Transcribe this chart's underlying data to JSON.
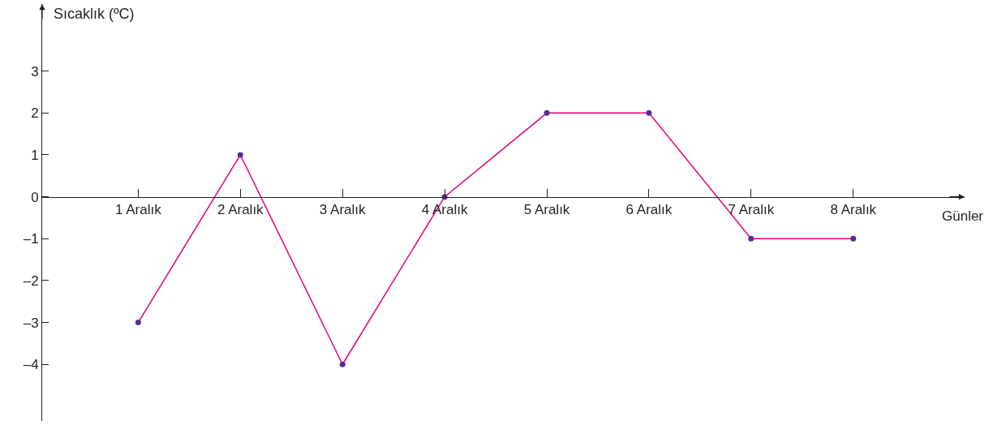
{
  "chart_data": {
    "type": "line",
    "xlabel": "Günler",
    "ylabel": "Sıcaklık (ºC)",
    "categories": [
      "1 Aralık",
      "2 Aralık",
      "3 Aralık",
      "4 Aralık",
      "5 Aralık",
      "6 Aralık",
      "7 Aralık",
      "8 Aralık"
    ],
    "series": [
      {
        "color": "#e5007e",
        "values": [
          -3,
          1,
          -4,
          0,
          2,
          2,
          -1,
          -1
        ]
      }
    ],
    "ylim": [
      -5.35,
      4.6
    ],
    "yticks": [
      {
        "value": -4,
        "label": "–4"
      },
      {
        "value": -3,
        "label": "–3"
      },
      {
        "value": -2,
        "label": "–2"
      },
      {
        "value": -1,
        "label": "–1"
      },
      0,
      1,
      2,
      3
    ],
    "marker": "circle",
    "line_style": "solid"
  }
}
